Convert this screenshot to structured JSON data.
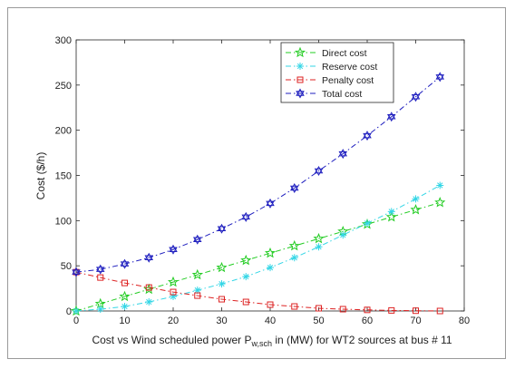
{
  "chart_data": {
    "type": "line",
    "title": "",
    "xlabel": {
      "prefix": "Cost vs Wind scheduled power P",
      "subscript": "w,sch",
      "suffix": " in (MW) for WT2 sources at bus # 11"
    },
    "ylabel": "Cost ($/h)",
    "xlim": [
      0,
      80
    ],
    "ylim": [
      0,
      300
    ],
    "xticks": [
      0,
      10,
      20,
      30,
      40,
      50,
      60,
      70,
      80
    ],
    "yticks": [
      0,
      50,
      100,
      150,
      200,
      250,
      300
    ],
    "grid": false,
    "legend_position": "top-right-inside",
    "x": [
      0,
      5,
      10,
      15,
      20,
      25,
      30,
      35,
      40,
      45,
      50,
      55,
      60,
      65,
      70,
      75
    ],
    "series": [
      {
        "name": "Direct cost",
        "color": "#22cc22",
        "marker": "star",
        "values": [
          0,
          8,
          16,
          24,
          32,
          40,
          48,
          56,
          64,
          72,
          80,
          88,
          96,
          104,
          112,
          120
        ]
      },
      {
        "name": "Reserve cost",
        "color": "#33d6e6",
        "marker": "asterisk",
        "values": [
          0,
          2,
          5,
          10,
          16,
          23,
          30,
          38,
          48,
          59,
          71,
          84,
          97,
          110,
          124,
          139
        ]
      },
      {
        "name": "Penalty cost",
        "color": "#dd2222",
        "marker": "square",
        "values": [
          43,
          37,
          31,
          26,
          21,
          17,
          13,
          10,
          7,
          5,
          3,
          2,
          1.2,
          0.6,
          0.3,
          0
        ]
      },
      {
        "name": "Total cost",
        "color": "#1f1fbf",
        "marker": "hexagram",
        "values": [
          43,
          46,
          52,
          59,
          68,
          79,
          91,
          104,
          119,
          136,
          155,
          174,
          194,
          215,
          237,
          259
        ]
      }
    ]
  }
}
